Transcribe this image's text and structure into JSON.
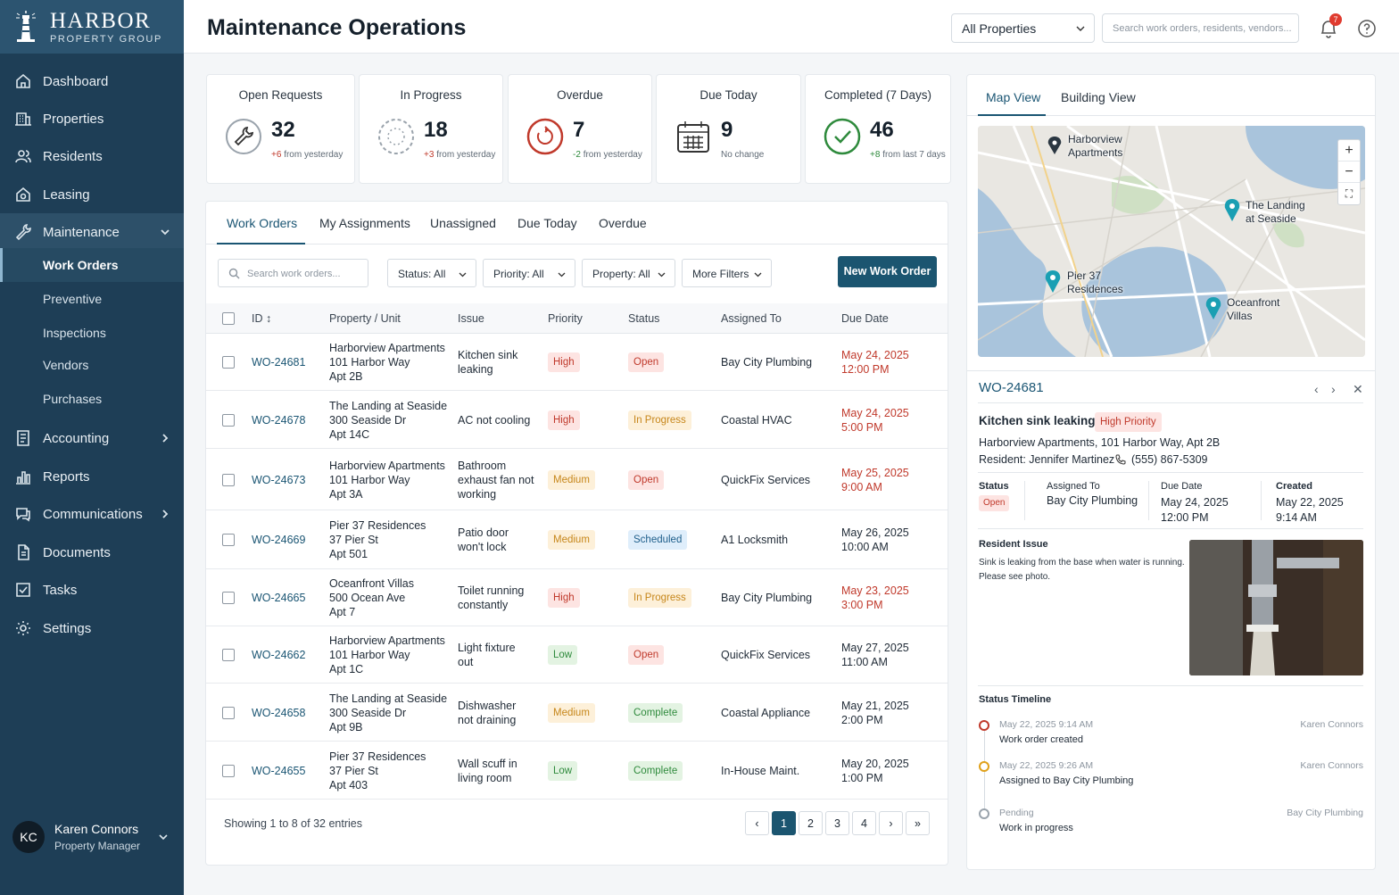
{
  "brand": {
    "name": "HARBOR",
    "sub": "PROPERTY GROUP"
  },
  "nav": {
    "items": [
      {
        "label": "Dashboard",
        "icon": "home-icon"
      },
      {
        "label": "Properties",
        "icon": "building-icon"
      },
      {
        "label": "Residents",
        "icon": "users-icon"
      },
      {
        "label": "Leasing",
        "icon": "house-dollar-icon"
      },
      {
        "label": "Maintenance",
        "icon": "wrench-icon"
      },
      {
        "label": "Accounting",
        "icon": "ledger-icon"
      },
      {
        "label": "Reports",
        "icon": "bar-chart-icon"
      },
      {
        "label": "Communications",
        "icon": "chat-icon"
      },
      {
        "label": "Documents",
        "icon": "document-icon"
      },
      {
        "label": "Tasks",
        "icon": "checkbox-icon"
      },
      {
        "label": "Settings",
        "icon": "gear-icon"
      }
    ],
    "sub": [
      "Work Orders",
      "Preventive",
      "Inspections",
      "Vendors",
      "Purchases"
    ]
  },
  "user": {
    "initials": "KC",
    "name": "Karen Connors",
    "role": "Property Manager"
  },
  "header": {
    "title": "Maintenance Operations",
    "property_select": "All Properties",
    "search_placeholder": "Search work orders, residents, vendors...",
    "notif_count": "7"
  },
  "kpis": [
    {
      "label": "Open Requests",
      "value": "32",
      "delta": "+6",
      "delta_text": "from yesterday"
    },
    {
      "label": "In Progress",
      "value": "18",
      "delta": "+3",
      "delta_text": "from yesterday"
    },
    {
      "label": "Overdue",
      "value": "7",
      "delta": "-2",
      "delta_text": "from yesterday"
    },
    {
      "label": "Due Today",
      "value": "9",
      "delta": "",
      "delta_text": "No change"
    },
    {
      "label": "Completed (7 Days)",
      "value": "46",
      "delta": "+8",
      "delta_text": "from last 7 days"
    }
  ],
  "work_orders": {
    "tabs": [
      "Work Orders",
      "My Assignments",
      "Unassigned",
      "Due Today",
      "Overdue"
    ],
    "search_placeholder": "Search work orders...",
    "filters": [
      "Status: All",
      "Priority: All",
      "Property: All",
      "More Filters"
    ],
    "new_button": "New Work Order",
    "columns": [
      "ID",
      "Property / Unit",
      "Issue",
      "Priority",
      "Status",
      "Assigned To",
      "Due Date"
    ],
    "rows": [
      {
        "id": "WO-24681",
        "prop": [
          "Harborview Apartments",
          "101 Harbor Way",
          "Apt 2B"
        ],
        "issue": [
          "Kitchen sink",
          "leaking"
        ],
        "priority": "High",
        "status": "Open",
        "assigned": "Bay City Plumbing",
        "due": [
          "May 24, 2025",
          "12:00 PM"
        ],
        "due_red": true
      },
      {
        "id": "WO-24678",
        "prop": [
          "The Landing at Seaside",
          "300 Seaside Dr",
          "Apt 14C"
        ],
        "issue": [
          "AC not cooling"
        ],
        "priority": "High",
        "status": "In Progress",
        "assigned": "Coastal HVAC",
        "due": [
          "May 24, 2025",
          "5:00 PM"
        ],
        "due_red": true
      },
      {
        "id": "WO-24673",
        "prop": [
          "Harborview Apartments",
          "101 Harbor Way",
          "Apt 3A"
        ],
        "issue": [
          "Bathroom",
          "exhaust fan not",
          "working"
        ],
        "priority": "Medium",
        "status": "Open",
        "assigned": "QuickFix Services",
        "due": [
          "May 25, 2025",
          "9:00 AM"
        ],
        "due_red": true
      },
      {
        "id": "WO-24669",
        "prop": [
          "Pier 37 Residences",
          "37 Pier St",
          "Apt 501"
        ],
        "issue": [
          "Patio door",
          "won't lock"
        ],
        "priority": "Medium",
        "status": "Scheduled",
        "assigned": "A1 Locksmith",
        "due": [
          "May 26, 2025",
          "10:00 AM"
        ],
        "due_red": false
      },
      {
        "id": "WO-24665",
        "prop": [
          "Oceanfront Villas",
          "500 Ocean Ave",
          "Apt 7"
        ],
        "issue": [
          "Toilet running",
          "constantly"
        ],
        "priority": "High",
        "status": "In Progress",
        "assigned": "Bay City Plumbing",
        "due": [
          "May 23, 2025",
          "3:00 PM"
        ],
        "due_red": true
      },
      {
        "id": "WO-24662",
        "prop": [
          "Harborview Apartments",
          "101 Harbor Way",
          "Apt 1C"
        ],
        "issue": [
          "Light fixture",
          "out"
        ],
        "priority": "Low",
        "status": "Open",
        "assigned": "QuickFix Services",
        "due": [
          "May 27, 2025",
          "11:00 AM"
        ],
        "due_red": false
      },
      {
        "id": "WO-24658",
        "prop": [
          "The Landing at Seaside",
          "300 Seaside Dr",
          "Apt 9B"
        ],
        "issue": [
          "Dishwasher",
          "not draining"
        ],
        "priority": "Medium",
        "status": "Complete",
        "assigned": "Coastal Appliance",
        "due": [
          "May 21, 2025",
          "2:00 PM"
        ],
        "due_red": false
      },
      {
        "id": "WO-24655",
        "prop": [
          "Pier 37 Residences",
          "37 Pier St",
          "Apt 403"
        ],
        "issue": [
          "Wall scuff in",
          "living room"
        ],
        "priority": "Low",
        "status": "Complete",
        "assigned": "In-House Maint.",
        "due": [
          "May 20, 2025",
          "1:00 PM"
        ],
        "due_red": false
      }
    ],
    "footer": "Showing 1 to 8 of 32 entries",
    "pages": [
      "1",
      "2",
      "3",
      "4"
    ]
  },
  "right_panel": {
    "tabs": [
      "Map View",
      "Building View"
    ],
    "map_labels": [
      [
        "Harborview",
        "Apartments"
      ],
      [
        "The Landing",
        "at Seaside"
      ],
      [
        "Pier 37",
        "Residences"
      ],
      [
        "Oceanfront",
        "Villas"
      ]
    ],
    "detail": {
      "id": "WO-24681",
      "title": "Kitchen sink leaking",
      "priority_badge": "High Priority",
      "address": "Harborview Apartments, 101 Harbor Way, Apt 2B",
      "resident": "Resident: Jennifer Martinez",
      "phone": "(555) 867-5309",
      "status_label": "Status",
      "status": "Open",
      "assigned_label": "Assigned To",
      "assigned": "Bay City Plumbing",
      "due_label": "Due Date",
      "due": [
        "May 24, 2025",
        "12:00 PM"
      ],
      "created_label": "Created",
      "created": [
        "May 22, 2025",
        "9:14 AM"
      ],
      "issue_label": "Resident Issue",
      "issue_text": [
        "Sink is leaking from the base when water is running.",
        "Please see photo."
      ],
      "timeline_label": "Status Timeline",
      "timeline": [
        {
          "time": "May 22, 2025 9:14 AM",
          "text": "Work order created",
          "who": "Karen Connors",
          "color": "#c0392b"
        },
        {
          "time": "May 22, 2025 9:26 AM",
          "text": "Assigned to Bay City Plumbing",
          "who": "Karen Connors",
          "color": "#e0a11b"
        },
        {
          "time": "Pending",
          "text": "Work in progress",
          "who": "Bay City Plumbing",
          "color": "#9aa3ac"
        }
      ]
    }
  }
}
